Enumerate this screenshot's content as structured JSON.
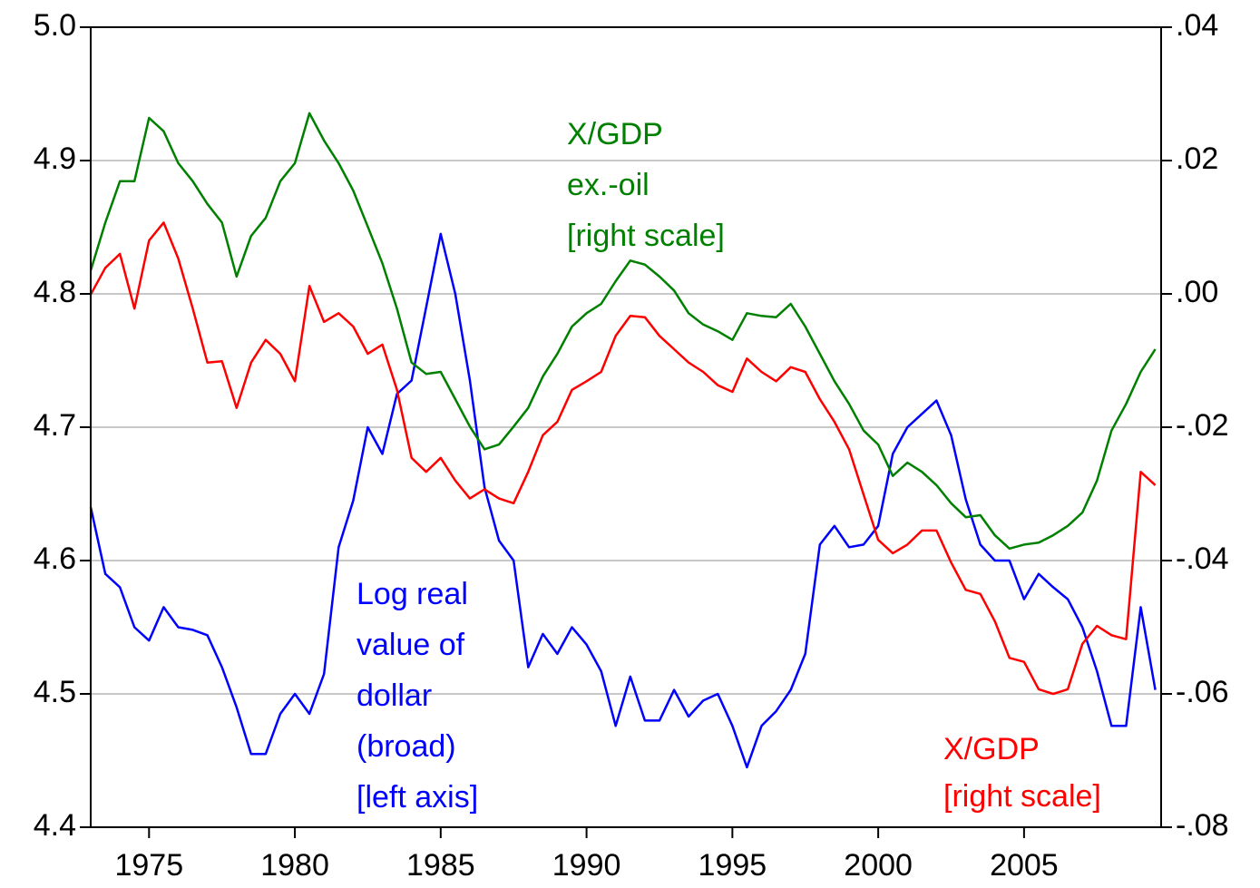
{
  "chart_data": {
    "type": "line",
    "x": [
      1973.0,
      1973.5,
      1974.0,
      1974.5,
      1975.0,
      1975.5,
      1976.0,
      1976.5,
      1977.0,
      1977.5,
      1978.0,
      1978.5,
      1979.0,
      1979.5,
      1980.0,
      1980.5,
      1981.0,
      1981.5,
      1982.0,
      1982.5,
      1983.0,
      1983.5,
      1984.0,
      1984.5,
      1985.0,
      1985.5,
      1986.0,
      1986.5,
      1987.0,
      1987.5,
      1988.0,
      1988.5,
      1989.0,
      1989.5,
      1990.0,
      1990.5,
      1991.0,
      1991.5,
      1992.0,
      1992.5,
      1993.0,
      1993.5,
      1994.0,
      1994.5,
      1995.0,
      1995.5,
      1996.0,
      1996.5,
      1997.0,
      1997.5,
      1998.0,
      1998.5,
      1999.0,
      1999.5,
      2000.0,
      2000.5,
      2001.0,
      2001.5,
      2002.0,
      2002.5,
      2003.0,
      2003.5,
      2004.0,
      2004.5,
      2005.0,
      2005.5,
      2006.0,
      2006.5,
      2007.0,
      2007.5,
      2008.0,
      2008.5,
      2009.0,
      2009.5
    ],
    "xlim": [
      1973,
      2009.7
    ],
    "xticks": [
      1975,
      1980,
      1985,
      1990,
      1995,
      2000,
      2005
    ],
    "ylim": [
      4.4,
      5.0
    ],
    "yticks": [
      {
        "value": 4.4,
        "label": "4.4"
      },
      {
        "value": 4.5,
        "label": "4.5"
      },
      {
        "value": 4.6,
        "label": "4.6"
      },
      {
        "value": 4.7,
        "label": "4.7"
      },
      {
        "value": 4.8,
        "label": "4.8"
      },
      {
        "value": 4.9,
        "label": "4.9"
      },
      {
        "value": 5.0,
        "label": "5.0"
      }
    ],
    "y2lim": [
      -0.08,
      0.04
    ],
    "y2ticks": [
      {
        "value": -0.08,
        "label": "-.08"
      },
      {
        "value": -0.06,
        "label": "-.06"
      },
      {
        "value": -0.04,
        "label": "-.04"
      },
      {
        "value": -0.02,
        "label": "-.02"
      },
      {
        "value": 0,
        "label": ".00"
      },
      {
        "value": 0.02,
        "label": ".02"
      },
      {
        "value": 0.04,
        "label": ".04"
      }
    ],
    "grid": true,
    "series": [
      {
        "color": "#0000ff",
        "axis": "y",
        "values": [
          4.64,
          4.59,
          4.58,
          4.55,
          4.54,
          4.565,
          4.55,
          4.548,
          4.544,
          4.52,
          4.49,
          4.455,
          4.455,
          4.485,
          4.5,
          4.485,
          4.515,
          4.61,
          4.645,
          4.7,
          4.68,
          4.725,
          4.735,
          4.79,
          4.845,
          4.8,
          4.735,
          4.655,
          4.615,
          4.6,
          4.52,
          4.545,
          4.53,
          4.55,
          4.537,
          4.517,
          4.476,
          4.513,
          4.48,
          4.48,
          4.503,
          4.483,
          4.495,
          4.5,
          4.476,
          4.445,
          4.476,
          4.487,
          4.503,
          4.53,
          4.612,
          4.626,
          4.61,
          4.612,
          4.626,
          4.68,
          4.7,
          4.71,
          4.72,
          4.694,
          4.646,
          4.612,
          4.6,
          4.6,
          4.571,
          4.59,
          4.58,
          4.571,
          4.55,
          4.517,
          4.476,
          4.476,
          4.565,
          4.503
        ]
      },
      {
        "color": "#008000",
        "axis": "y2",
        "values": [
          0.0035,
          0.0107,
          0.0169,
          0.0169,
          0.0264,
          0.0244,
          0.0196,
          0.0169,
          0.0135,
          0.0107,
          0.0026,
          0.0087,
          0.0114,
          0.0169,
          0.0196,
          0.0271,
          0.023,
          0.0196,
          0.0155,
          0.0101,
          0.0046,
          -0.0022,
          -0.0103,
          -0.012,
          -0.0117,
          -0.0158,
          -0.0199,
          -0.0233,
          -0.0226,
          -0.0199,
          -0.0171,
          -0.0124,
          -0.009,
          -0.0049,
          -0.0029,
          -0.0015,
          0.0019,
          0.005,
          0.0044,
          0.0026,
          0.0005,
          -0.0029,
          -0.0046,
          -0.0056,
          -0.0069,
          -0.0029,
          -0.0033,
          -0.0035,
          -0.0015,
          -0.0049,
          -0.009,
          -0.0131,
          -0.0165,
          -0.0205,
          -0.0226,
          -0.0273,
          -0.0253,
          -0.0267,
          -0.0287,
          -0.0314,
          -0.0335,
          -0.0332,
          -0.0362,
          -0.0382,
          -0.0376,
          -0.0373,
          -0.0362,
          -0.0348,
          -0.0328,
          -0.028,
          -0.0205,
          -0.0165,
          -0.0117,
          -0.0083
        ]
      },
      {
        "color": "#ff0000",
        "axis": "y2",
        "values": [
          -0.0001,
          0.0039,
          0.006,
          -0.0022,
          0.008,
          0.0107,
          0.0053,
          -0.0022,
          -0.0103,
          -0.0101,
          -0.0171,
          -0.0103,
          -0.0069,
          -0.009,
          -0.0131,
          0.0012,
          -0.0042,
          -0.0029,
          -0.0049,
          -0.009,
          -0.0076,
          -0.0144,
          -0.0246,
          -0.0267,
          -0.0246,
          -0.028,
          -0.0307,
          -0.0293,
          -0.0307,
          -0.0314,
          -0.0267,
          -0.0212,
          -0.0192,
          -0.0144,
          -0.0131,
          -0.0117,
          -0.0063,
          -0.0033,
          -0.0035,
          -0.0063,
          -0.0083,
          -0.0103,
          -0.0117,
          -0.0137,
          -0.0147,
          -0.0097,
          -0.0117,
          -0.0131,
          -0.011,
          -0.0117,
          -0.0158,
          -0.0192,
          -0.0233,
          -0.0301,
          -0.0369,
          -0.0389,
          -0.0376,
          -0.0355,
          -0.0355,
          -0.0403,
          -0.0444,
          -0.045,
          -0.0491,
          -0.0546,
          -0.0552,
          -0.0593,
          -0.06,
          -0.0593,
          -0.0525,
          -0.0498,
          -0.0512,
          -0.0518,
          -0.0267,
          -0.0287
        ]
      }
    ],
    "annotations": [
      {
        "color": "#008000",
        "lines": [
          "X/GDP",
          "ex.-oil",
          "[right scale]"
        ]
      },
      {
        "color": "#0000ff",
        "lines": [
          "Log real",
          "value of",
          "dollar",
          "(broad)",
          "[left axis]"
        ]
      },
      {
        "color": "#ff0000",
        "lines": [
          "X/GDP",
          "[right scale]"
        ]
      }
    ]
  }
}
